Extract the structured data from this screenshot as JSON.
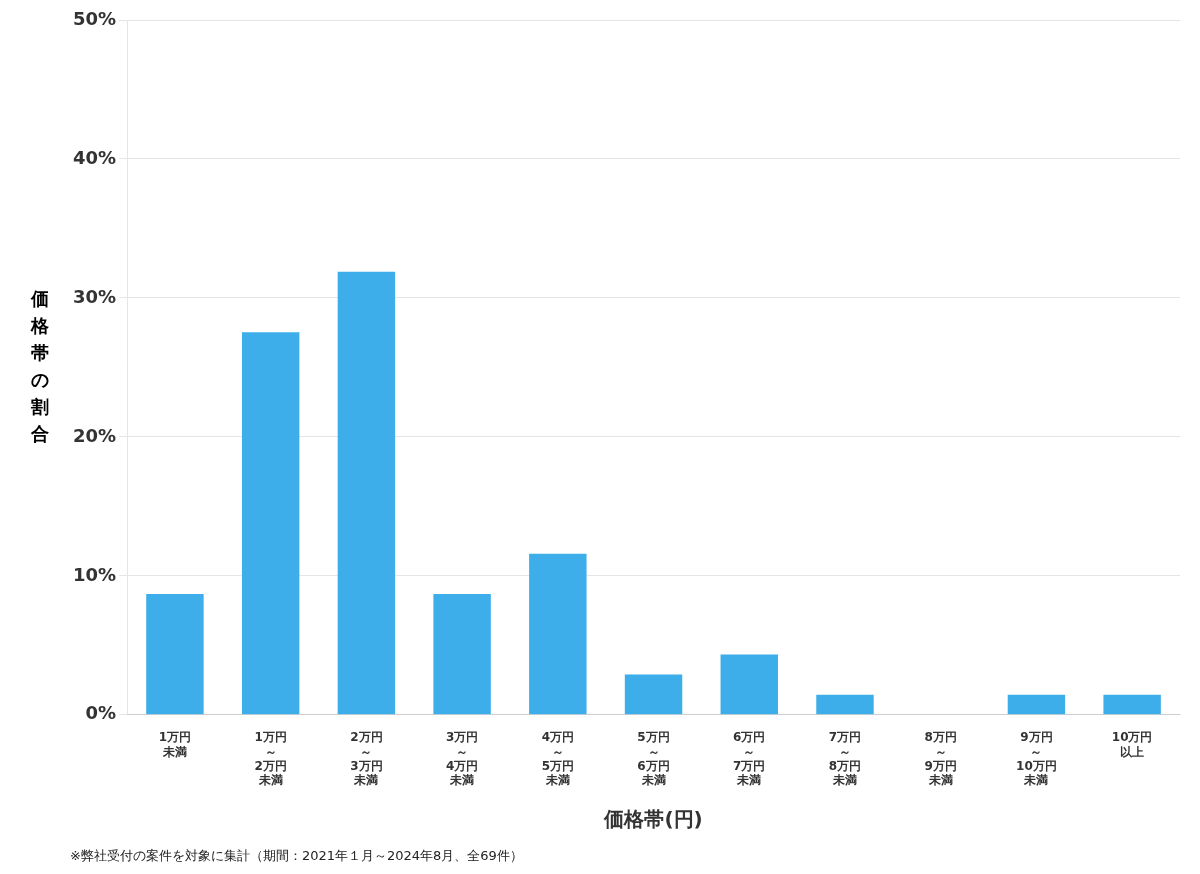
{
  "chart_data": {
    "type": "bar",
    "categories": [
      "1万円\n未満",
      "1万円\n～\n2万円\n未満",
      "2万円\n～\n3万円\n未満",
      "3万円\n～\n4万円\n未満",
      "4万円\n～\n5万円\n未満",
      "5万円\n～\n6万円\n未満",
      "6万円\n～\n7万円\n未満",
      "7万円\n～\n8万円\n未満",
      "8万円\n～\n9万円\n未満",
      "9万円\n～\n10万円\n未満",
      "10万円\n以上"
    ],
    "values": [
      8.695652,
      27.536232,
      31.884058,
      8.695652,
      11.594203,
      2.898551,
      4.347826,
      1.449275,
      0.0,
      1.449275,
      1.449275
    ],
    "color": "#3daee9",
    "xlabel": "価格帯(円)",
    "ylabel": "価格帯の割合",
    "footnote": "※弊社受付の案件を対象に集計（期間：2021年１月～2024年8月、全69件）",
    "ylim": [
      0,
      50
    ],
    "yticks": [
      {
        "value": 0,
        "label": "0%"
      },
      {
        "value": 10,
        "label": "10%"
      },
      {
        "value": 20,
        "label": "20%"
      },
      {
        "value": 30,
        "label": "30%"
      },
      {
        "value": 40,
        "label": "40%"
      },
      {
        "value": 50,
        "label": "50%"
      }
    ],
    "grid": true
  }
}
